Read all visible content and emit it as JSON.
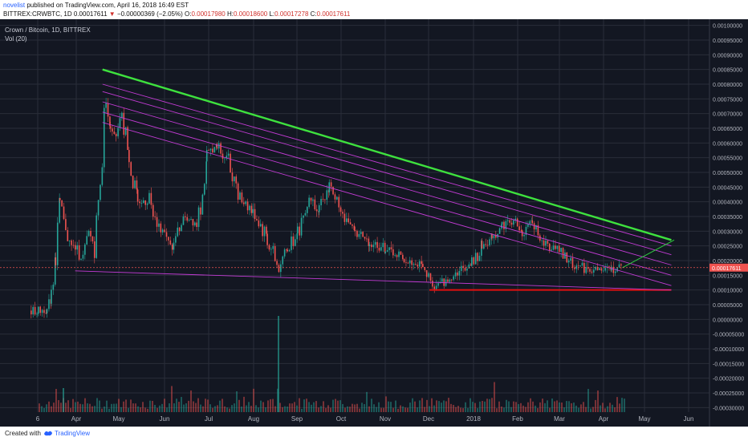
{
  "header": {
    "author": "novelist",
    "published": "published on TradingView.com, April 16, 2018 16:49 EST",
    "symbol": "BITTREX:CRWBTC, 1D",
    "last": "0.00017611",
    "change_arrow": "▼",
    "change": "−0.00000369 (−2.05%)",
    "o_label": "O:",
    "o_value": "0.00017980",
    "h_label": "H:",
    "h_value": "0.00018600",
    "l_label": "L:",
    "l_value": "0.00017278",
    "c_label": "C:",
    "c_value": "0.00017611"
  },
  "legend": {
    "title": "Crown / Bitcoin, 1D, BITTREX",
    "volume": "Vol (20)"
  },
  "footer": {
    "created_with": "Created with",
    "brand": "TradingView"
  },
  "colors": {
    "background": "#131722",
    "up": "#26a69a",
    "down": "#ef5350",
    "resistance": "#3ee13e",
    "channel": "#c23bd4",
    "support": "#e01010",
    "grid": "#2a2e39",
    "text": "#c9ccd6",
    "last_price": "#ef5350",
    "projection": "#2ecc40"
  },
  "chart_data": {
    "type": "candlestick",
    "title": "Crown / Bitcoin, 1D, BITTREX",
    "x_tick_labels": [
      "6",
      "Apr",
      "May",
      "Jun",
      "Jul",
      "Aug",
      "Sep",
      "Oct",
      "Nov",
      "Dec",
      "2018",
      "Feb",
      "Mar",
      "Apr",
      "May",
      "Jun"
    ],
    "y_tick_labels": [
      "0.00100000",
      "0.00095000",
      "0.00090000",
      "0.00085000",
      "0.00080000",
      "0.00075000",
      "0.00070000",
      "0.00065000",
      "0.00060000",
      "0.00055000",
      "0.00050000",
      "0.00045000",
      "0.00040000",
      "0.00035000",
      "0.00030000",
      "0.00025000",
      "0.00020000",
      "0.00015000",
      "0.00010000",
      "0.00005000",
      "0.00000000",
      "-0.00005000",
      "-0.00010000",
      "-0.00015000",
      "-0.00020000",
      "-0.00025000",
      "-0.00030000"
    ],
    "y_tick_values": [
      0.001,
      0.00095,
      0.0009,
      0.00085,
      0.0008,
      0.00075,
      0.0007,
      0.00065,
      0.0006,
      0.00055,
      0.0005,
      0.00045,
      0.0004,
      0.00035,
      0.0003,
      0.00025,
      0.0002,
      0.00015,
      0.0001,
      5e-05,
      0,
      -5e-05,
      -0.0001,
      -0.00015,
      -0.0002,
      -0.00025,
      -0.0003
    ],
    "ylim": [
      -0.00031,
      0.00101
    ],
    "last_price": "0.00017611",
    "last_price_value": 0.00017611,
    "close_path": [
      [
        "2017-03-01",
        3e-05
      ],
      [
        "2017-03-06",
        2.8e-05
      ],
      [
        "2017-03-12",
        3.5e-05
      ],
      [
        "2017-03-15",
        8e-05
      ],
      [
        "2017-03-18",
        0.00023
      ],
      [
        "2017-03-21",
        0.00039
      ],
      [
        "2017-03-25",
        0.0003
      ],
      [
        "2017-03-29",
        0.00025
      ],
      [
        "2017-04-02",
        0.00024
      ],
      [
        "2017-04-06",
        0.0002
      ],
      [
        "2017-04-10",
        0.00029
      ],
      [
        "2017-04-14",
        0.00026
      ],
      [
        "2017-04-18",
        0.00048
      ],
      [
        "2017-04-22",
        0.00076
      ],
      [
        "2017-04-25",
        0.00064
      ],
      [
        "2017-04-29",
        0.00062
      ],
      [
        "2017-05-03",
        0.00072
      ],
      [
        "2017-05-08",
        0.00056
      ],
      [
        "2017-05-14",
        0.00038
      ],
      [
        "2017-05-22",
        0.00042
      ],
      [
        "2017-05-30",
        0.0003
      ],
      [
        "2017-06-08",
        0.00025
      ],
      [
        "2017-06-16",
        0.00035
      ],
      [
        "2017-06-24",
        0.00033
      ],
      [
        "2017-07-01",
        0.00056
      ],
      [
        "2017-07-08",
        0.00059
      ],
      [
        "2017-07-16",
        0.00054
      ],
      [
        "2017-07-24",
        0.00042
      ],
      [
        "2017-08-02",
        0.00037
      ],
      [
        "2017-08-12",
        0.00028
      ],
      [
        "2017-08-20",
        0.00017
      ],
      [
        "2017-08-26",
        0.00024
      ],
      [
        "2017-09-02",
        0.0003
      ],
      [
        "2017-09-10",
        0.00042
      ],
      [
        "2017-09-17",
        0.00038
      ],
      [
        "2017-09-24",
        0.00045
      ],
      [
        "2017-10-02",
        0.00037
      ],
      [
        "2017-10-12",
        0.0003
      ],
      [
        "2017-10-22",
        0.00026
      ],
      [
        "2017-11-02",
        0.00024
      ],
      [
        "2017-11-15",
        0.0002
      ],
      [
        "2017-11-28",
        0.00018
      ],
      [
        "2017-12-06",
        0.00011
      ],
      [
        "2017-12-14",
        0.00013
      ],
      [
        "2017-12-22",
        0.00016
      ],
      [
        "2018-01-01",
        0.00019
      ],
      [
        "2018-01-08",
        0.00025
      ],
      [
        "2018-01-15",
        0.00028
      ],
      [
        "2018-01-22",
        0.00032
      ],
      [
        "2018-01-30",
        0.00034
      ],
      [
        "2018-02-05",
        0.00029
      ],
      [
        "2018-02-12",
        0.00033
      ],
      [
        "2018-02-20",
        0.00026
      ],
      [
        "2018-02-28",
        0.00024
      ],
      [
        "2018-03-08",
        0.0002
      ],
      [
        "2018-03-16",
        0.00018
      ],
      [
        "2018-03-24",
        0.00017
      ],
      [
        "2018-04-01",
        0.000165
      ],
      [
        "2018-04-08",
        0.00017
      ],
      [
        "2018-04-16",
        0.000176
      ]
    ],
    "trendlines": [
      {
        "name": "resistance",
        "color": "#3ee13e",
        "from": [
          "2017-04-20",
          0.00085
        ],
        "to": [
          "2018-05-20",
          0.00027
        ]
      },
      {
        "name": "support",
        "color": "#e01010",
        "from": [
          "2017-12-03",
          0.0001
        ],
        "to": [
          "2018-05-20",
          0.0001
        ]
      },
      {
        "name": "channel-top",
        "color": "#c23bd4",
        "from": [
          "2017-04-20",
          0.0008
        ],
        "to": [
          "2018-05-20",
          0.00025
        ]
      },
      {
        "name": "channel-2",
        "color": "#c23bd4",
        "from": [
          "2017-04-20",
          0.000775
        ],
        "to": [
          "2018-05-20",
          0.00022
        ]
      },
      {
        "name": "channel-3",
        "color": "#c23bd4",
        "from": [
          "2017-04-20",
          0.00074
        ],
        "to": [
          "2018-05-20",
          0.000185
        ]
      },
      {
        "name": "channel-4",
        "color": "#c23bd4",
        "from": [
          "2017-04-20",
          0.000705
        ],
        "to": [
          "2018-05-20",
          0.00015
        ]
      },
      {
        "name": "channel-bottom",
        "color": "#c23bd4",
        "from": [
          "2017-04-20",
          0.00067
        ],
        "to": [
          "2018-05-20",
          0.000115
        ]
      },
      {
        "name": "lower-boundary",
        "color": "#c23bd4",
        "from": [
          "2017-04-01",
          0.000165
        ],
        "to": [
          "2018-05-20",
          0.0001
        ]
      },
      {
        "name": "projection",
        "color": "#2ecc40",
        "from": [
          "2018-04-16",
          0.000176
        ],
        "to": [
          "2018-05-22",
          0.00027
        ]
      }
    ]
  }
}
